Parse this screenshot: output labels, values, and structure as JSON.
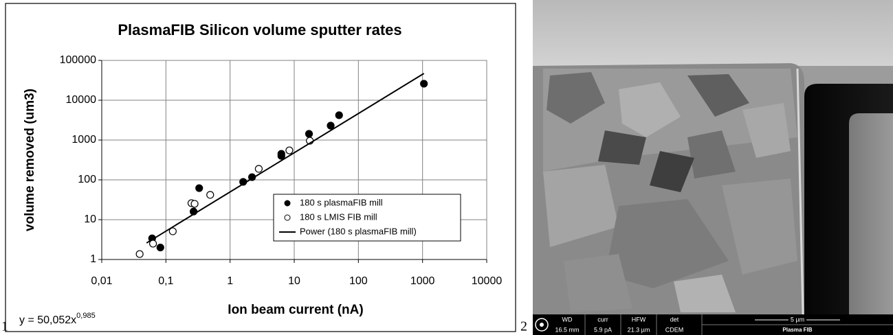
{
  "panel_labels": [
    "1",
    "2"
  ],
  "chart_data": {
    "type": "scatter",
    "title": "PlasmaFIB Silicon volume sputter rates",
    "x_label": "Ion beam current (nA)",
    "y_label": "volume removed (um3)",
    "xscale": "log",
    "yscale": "log",
    "grid": true,
    "legend": "lower right",
    "xlim": [
      0.01,
      10000
    ],
    "ylim": [
      1,
      100000
    ],
    "xticks": [
      {
        "value": 0.01,
        "label": "0,01"
      },
      {
        "value": 0.1,
        "label": "0,1"
      },
      1,
      10,
      100,
      1000,
      10000
    ],
    "yticks": [
      1,
      10,
      100,
      1000,
      10000,
      100000
    ],
    "series": [
      {
        "name": "180 s plasmaFIB mill",
        "color": "#000000",
        "marker": "filled",
        "x": [
          0.061,
          0.082,
          0.27,
          0.33,
          1.6,
          2.2,
          6.3,
          6.3,
          17,
          37,
          50,
          1050
        ],
        "values": [
          3.4,
          2.0,
          16,
          62,
          89,
          117,
          450,
          400,
          1430,
          2300,
          4200,
          26000
        ]
      },
      {
        "name": "180 s LMIS FIB mill",
        "color": "#000000",
        "marker": "open",
        "x": [
          0.039,
          0.063,
          0.128,
          0.25,
          0.28,
          0.49,
          2.8,
          8.4,
          17.5
        ],
        "values": [
          1.37,
          2.5,
          5.1,
          26,
          25,
          42,
          189,
          550,
          960
        ]
      },
      {
        "name": "Power (180 s plasmaFIB mill)",
        "color": "#000000",
        "marker": "line",
        "x": [
          0.05,
          1050
        ],
        "values": [
          2.6,
          47000
        ]
      }
    ],
    "annotation": {
      "text": "y = 50,052x",
      "superscript": "0,985"
    }
  },
  "image": {
    "info_bar": {
      "labels": [
        "WD",
        "curr",
        "HFW",
        "det"
      ],
      "values": [
        "16.5 mm",
        "5.9 pA",
        "21.3 µm",
        "CDEM"
      ]
    },
    "scale_bar": "5 µm",
    "mode": "Plasma FIB"
  }
}
